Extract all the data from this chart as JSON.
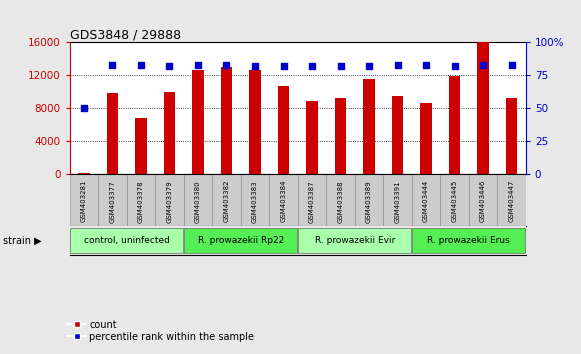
{
  "title": "GDS3848 / 29888",
  "samples": [
    "GSM403281",
    "GSM403377",
    "GSM403378",
    "GSM403379",
    "GSM403380",
    "GSM403382",
    "GSM403383",
    "GSM403384",
    "GSM403387",
    "GSM403388",
    "GSM403389",
    "GSM403391",
    "GSM403444",
    "GSM403445",
    "GSM403446",
    "GSM403447"
  ],
  "counts": [
    100,
    9800,
    6800,
    10000,
    12600,
    13000,
    12700,
    10700,
    8800,
    9200,
    11500,
    9500,
    8600,
    11900,
    16000,
    9200
  ],
  "percentiles": [
    50,
    83,
    83,
    82,
    83,
    83,
    82,
    82,
    82,
    82,
    82,
    83,
    83,
    82,
    83,
    83
  ],
  "bar_color": "#cc0000",
  "dot_color": "#0000cc",
  "ylim_left": [
    0,
    16000
  ],
  "ylim_right": [
    0,
    100
  ],
  "yticks_left": [
    0,
    4000,
    8000,
    12000,
    16000
  ],
  "yticks_right": [
    0,
    25,
    50,
    75,
    100
  ],
  "groups": [
    {
      "label": "control, uninfected",
      "start": 0,
      "end": 4,
      "color": "#aaffaa"
    },
    {
      "label": "R. prowazekii Rp22",
      "start": 4,
      "end": 8,
      "color": "#55ee55"
    },
    {
      "label": "R. prowazekii Evir",
      "start": 8,
      "end": 12,
      "color": "#aaffaa"
    },
    {
      "label": "R. prowazekii Erus",
      "start": 12,
      "end": 16,
      "color": "#55ee55"
    }
  ],
  "strain_label": "strain",
  "legend_count_label": "count",
  "legend_pct_label": "percentile rank within the sample",
  "bg_color": "#e8e8e8",
  "plot_bg": "#ffffff",
  "sample_box_color": "#cccccc",
  "left_tick_color": "#cc0000",
  "right_tick_color": "#0000cc"
}
